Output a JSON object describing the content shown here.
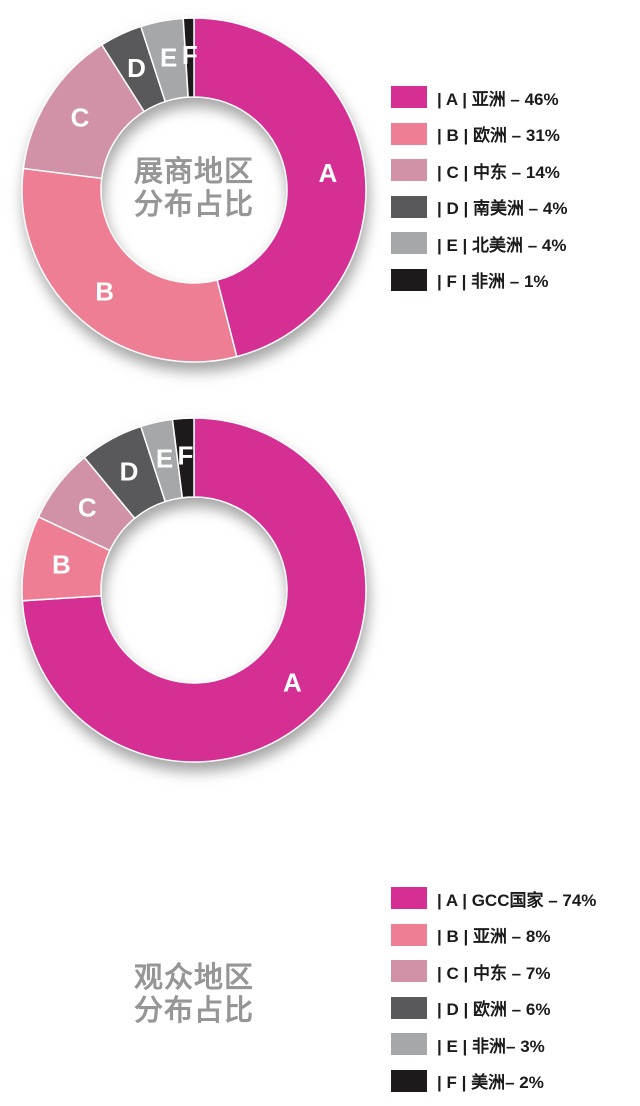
{
  "page": {
    "background": "#ffffff",
    "text_color": "#1b1b1b",
    "title_color": "#969696"
  },
  "chart_data": [
    {
      "type": "pie",
      "variant": "donut",
      "title": "展商地区分布占比",
      "title_lines": [
        "展商地区",
        "分布占比"
      ],
      "letters": [
        "A",
        "B",
        "C",
        "D",
        "E",
        "F"
      ],
      "categories": [
        "亚洲",
        "欧洲",
        "中东",
        "南美洲",
        "北美洲",
        "非洲"
      ],
      "values": [
        46,
        31,
        14,
        4,
        4,
        1
      ],
      "unit": "%",
      "colors": [
        "#d62f94",
        "#ee7e93",
        "#d191a7",
        "#59595b",
        "#a5a7a9",
        "#1e1a1b"
      ],
      "legend_position": "right",
      "start_angle": "top",
      "direction": "clockwise",
      "legend_labels": [
        "| A | 亚洲 – 46%",
        "| B | 欧洲 – 31%",
        "| C | 中东 – 14%",
        "| D | 南美洲 – 4%",
        "| E | 北美洲 – 4%",
        "| F | 非洲 – 1%"
      ]
    },
    {
      "type": "pie",
      "variant": "donut",
      "title": "观众地区分布占比",
      "title_lines": [
        "观众地区",
        "分布占比"
      ],
      "letters": [
        "A",
        "B",
        "C",
        "D",
        "E",
        "F"
      ],
      "categories": [
        "GCC国家",
        "亚洲",
        "中东",
        "欧洲",
        "非洲",
        "美洲"
      ],
      "values": [
        74,
        8,
        7,
        6,
        3,
        2
      ],
      "unit": "%",
      "colors": [
        "#d62f94",
        "#ee7e93",
        "#d191a7",
        "#59595b",
        "#a5a7a9",
        "#1e1a1b"
      ],
      "legend_position": "right",
      "start_angle": "top",
      "direction": "clockwise",
      "legend_labels": [
        "| A | GCC国家 – 74%",
        "| B | 亚洲 – 8%",
        "| C | 中东 – 7%",
        "| D | 欧洲 – 6%",
        "| E | 非洲– 3%",
        "| F | 美洲– 2%"
      ]
    }
  ]
}
